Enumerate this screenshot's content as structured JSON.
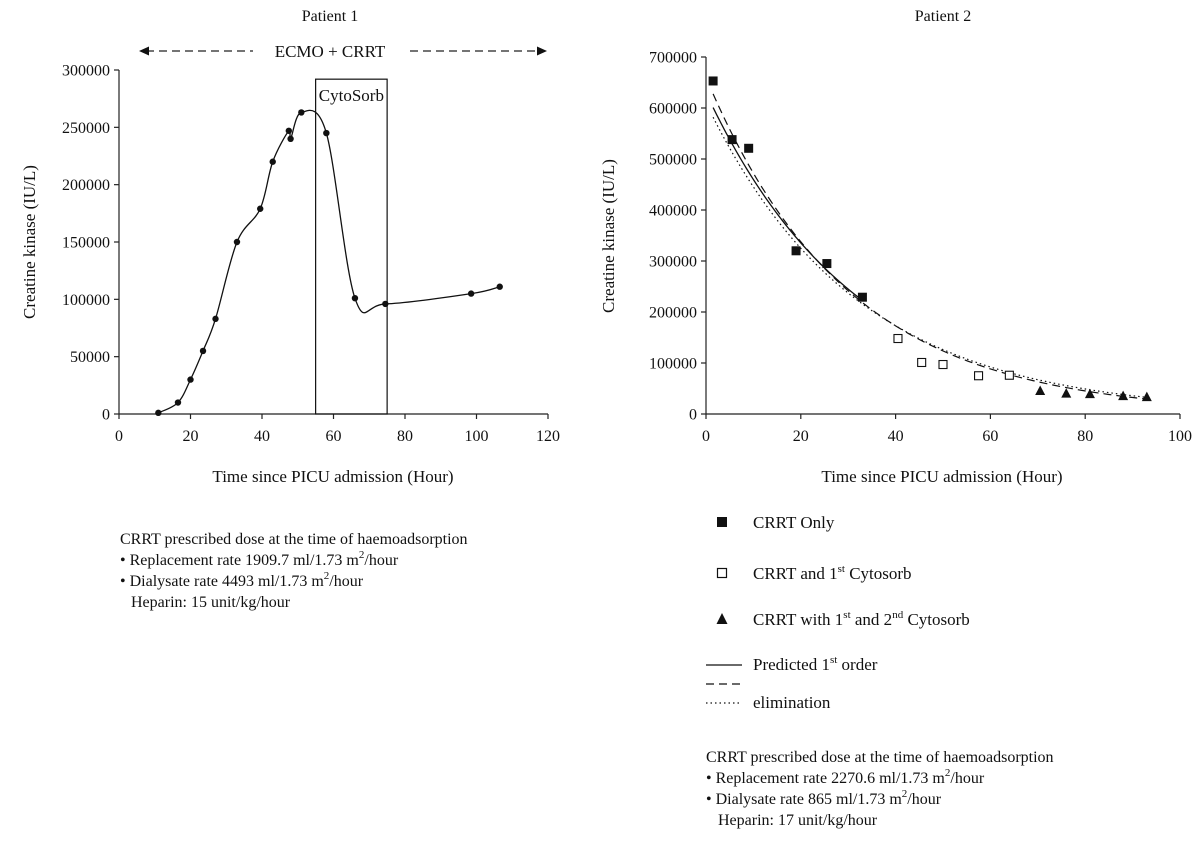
{
  "chart_data": [
    {
      "type": "line",
      "title": "Patient 1",
      "xlabel": "Time since PICU admission (Hour)",
      "ylabel": "Creatine kinase (IU/L)",
      "xlim": [
        0,
        120
      ],
      "ylim": [
        0,
        300000
      ],
      "xticks": [
        "0",
        "20",
        "40",
        "60",
        "80",
        "100",
        "120"
      ],
      "yticks": [
        "0",
        "50000",
        "100000",
        "150000",
        "200000",
        "250000",
        "300000"
      ],
      "series": [
        {
          "x": [
            11,
            16.5,
            20,
            23.5,
            27,
            33,
            39.5,
            43,
            47.5,
            48,
            51,
            58,
            66,
            74.5,
            98.5,
            106.5
          ],
          "y": [
            1000,
            10000,
            30000,
            55000,
            83000,
            150000,
            179000,
            220000,
            247000,
            240000,
            263000,
            245000,
            101000,
            96000,
            105000,
            111000
          ]
        }
      ],
      "annotations": {
        "span_label": "ECMO + CRRT",
        "span": [
          5,
          120
        ],
        "box_label": "CytoSorb",
        "box": [
          55,
          75
        ]
      },
      "notes": {
        "heading": "CRRT prescribed dose at the time of haemoadsorption",
        "line1_a": "• Replacement rate 1909.7 ml/1.73 m",
        "line1_sup": "2",
        "line1_b": "/hour",
        "line2_a": "• Dialysate rate 4493 ml/1.73 m",
        "line2_sup": "2",
        "line2_b": "/hour",
        "line3": "Heparin: 15 unit/kg/hour"
      }
    },
    {
      "type": "scatter",
      "title": "Patient 2",
      "xlabel": "Time since PICU admission (Hour)",
      "ylabel": "Creatine kinase (IU/L)",
      "xlim": [
        0,
        100
      ],
      "ylim": [
        0,
        700000
      ],
      "xticks": [
        "0",
        "20",
        "40",
        "60",
        "80",
        "100"
      ],
      "yticks": [
        "0",
        "100000",
        "200000",
        "300000",
        "400000",
        "500000",
        "600000",
        "700000"
      ],
      "series": [
        {
          "name": "CRRT Only",
          "x": [
            1.5,
            5.5,
            9,
            19,
            25.5,
            33
          ],
          "y": [
            653000,
            538000,
            521000,
            320000,
            295000,
            229000
          ]
        },
        {
          "name": "CRRT and 1st Cytosorb",
          "x": [
            40.5,
            45.5,
            50,
            57.5,
            64
          ],
          "y": [
            148000,
            101000,
            97000,
            75000,
            76000
          ]
        },
        {
          "name": "CRRT with 1st and 2nd Cytosorb",
          "x": [
            70.5,
            76,
            81,
            88,
            93
          ],
          "y": [
            45000,
            40000,
            39000,
            35000,
            33000
          ]
        }
      ],
      "fit_lines": {
        "solid": {
          "a": 630000,
          "k": 0.0315,
          "x_range": [
            1.5,
            33
          ]
        },
        "dashed": {
          "a": 660000,
          "k": 0.0335,
          "x_range": [
            1.5,
            93
          ]
        },
        "dotted": {
          "a": 610000,
          "k": 0.0315,
          "x_range": [
            1.5,
            93
          ]
        }
      },
      "legend": {
        "item1": "CRRT Only",
        "item2_a": "CRRT and 1",
        "item2_sup": "st",
        "item2_b": " Cytosorb",
        "item3_a": "CRRT with 1",
        "item3_sup1": "st",
        "item3_b": " and 2",
        "item3_sup2": "nd",
        "item3_c": " Cytosorb",
        "item4_a": "Predicted 1",
        "item4_sup": "st",
        "item4_b": " order",
        "item5": "elimination"
      },
      "notes": {
        "heading": "CRRT prescribed dose at the time of haemoadsorption",
        "line1_a": "• Replacement rate 2270.6 ml/1.73 m",
        "line1_sup": "2",
        "line1_b": "/hour",
        "line2_a": "• Dialysate rate 865 ml/1.73 m",
        "line2_sup": "2",
        "line2_b": "/hour",
        "line3": "Heparin: 17 unit/kg/hour"
      }
    }
  ]
}
